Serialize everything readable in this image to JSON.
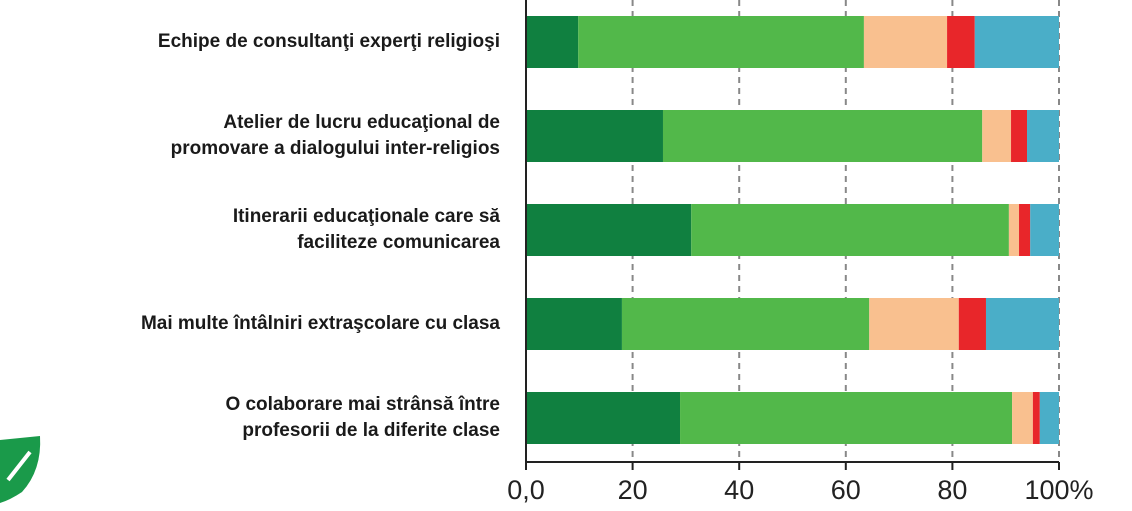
{
  "chart_data": {
    "type": "stacked_bar_horizontal",
    "categories": [
      [
        "Echipe de consultanţi experţi religioşi"
      ],
      [
        "Atelier de lucru educaţional de",
        "promovare a dialogului inter-religios"
      ],
      [
        "Itinerarii educaţionale care să",
        "faciliteze comunicarea"
      ],
      [
        "Mai multe întâlniri extraşcolare cu clasa"
      ],
      [
        "O colaborare mai strânsă între",
        "profesorii de la diferite clase"
      ]
    ],
    "series": [
      {
        "color": "#108040",
        "values": [
          9.8,
          25.7,
          31.0,
          18.0,
          28.9
        ]
      },
      {
        "color": "#52b84a",
        "values": [
          53.6,
          59.9,
          59.6,
          46.4,
          62.3
        ]
      },
      {
        "color": "#f9c08f",
        "values": [
          15.6,
          5.4,
          1.9,
          16.8,
          3.9
        ]
      },
      {
        "color": "#e8262a",
        "values": [
          5.2,
          3.0,
          2.1,
          5.1,
          1.3
        ]
      },
      {
        "color": "#4aaec8",
        "values": [
          15.8,
          6.0,
          5.4,
          13.7,
          3.6
        ]
      }
    ],
    "xlim": [
      0,
      100
    ],
    "xticks": [
      {
        "value": 0,
        "label": "0,0"
      },
      20,
      40,
      60,
      80,
      {
        "value": 100,
        "label": "100%"
      }
    ],
    "grid": true
  }
}
